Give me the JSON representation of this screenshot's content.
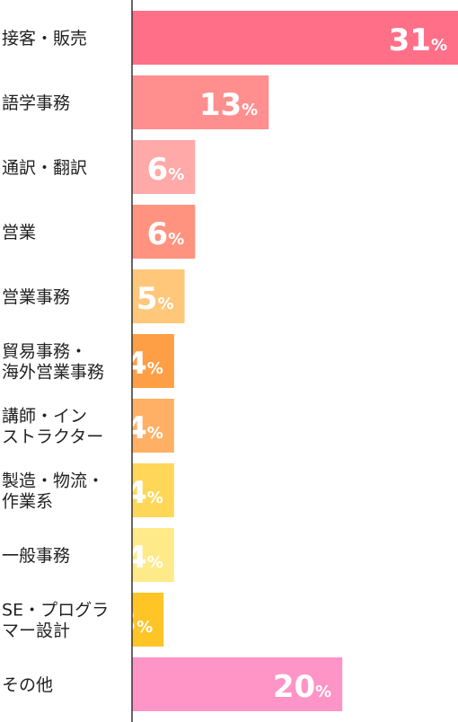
{
  "chart_data": {
    "type": "bar",
    "orientation": "horizontal",
    "categories": [
      [
        "接客・販売"
      ],
      [
        "語学事務"
      ],
      [
        "通訳・翻訳"
      ],
      [
        "営業"
      ],
      [
        "営業事務"
      ],
      [
        "貿易事務・",
        "海外営業事務"
      ],
      [
        "講師・イン",
        "ストラクター"
      ],
      [
        "製造・物流・",
        "作業系"
      ],
      [
        "一般事務"
      ],
      [
        "SE・プログラ",
        "マー設計"
      ],
      [
        "その他"
      ]
    ],
    "values": [
      31,
      13,
      6,
      6,
      5,
      4,
      4,
      4,
      4,
      3,
      20
    ],
    "unit": "%",
    "colors": [
      "#ff7088",
      "#ff8f8f",
      "#ffa9a9",
      "#ff9380",
      "#ffc77a",
      "#ff9f45",
      "#ffb064",
      "#ffd758",
      "#ffea8a",
      "#ffc526",
      "#ff94c6"
    ],
    "title": "",
    "xlabel": "",
    "ylabel": "",
    "xlim": [
      0,
      31
    ],
    "grid": false,
    "legend": "none"
  }
}
